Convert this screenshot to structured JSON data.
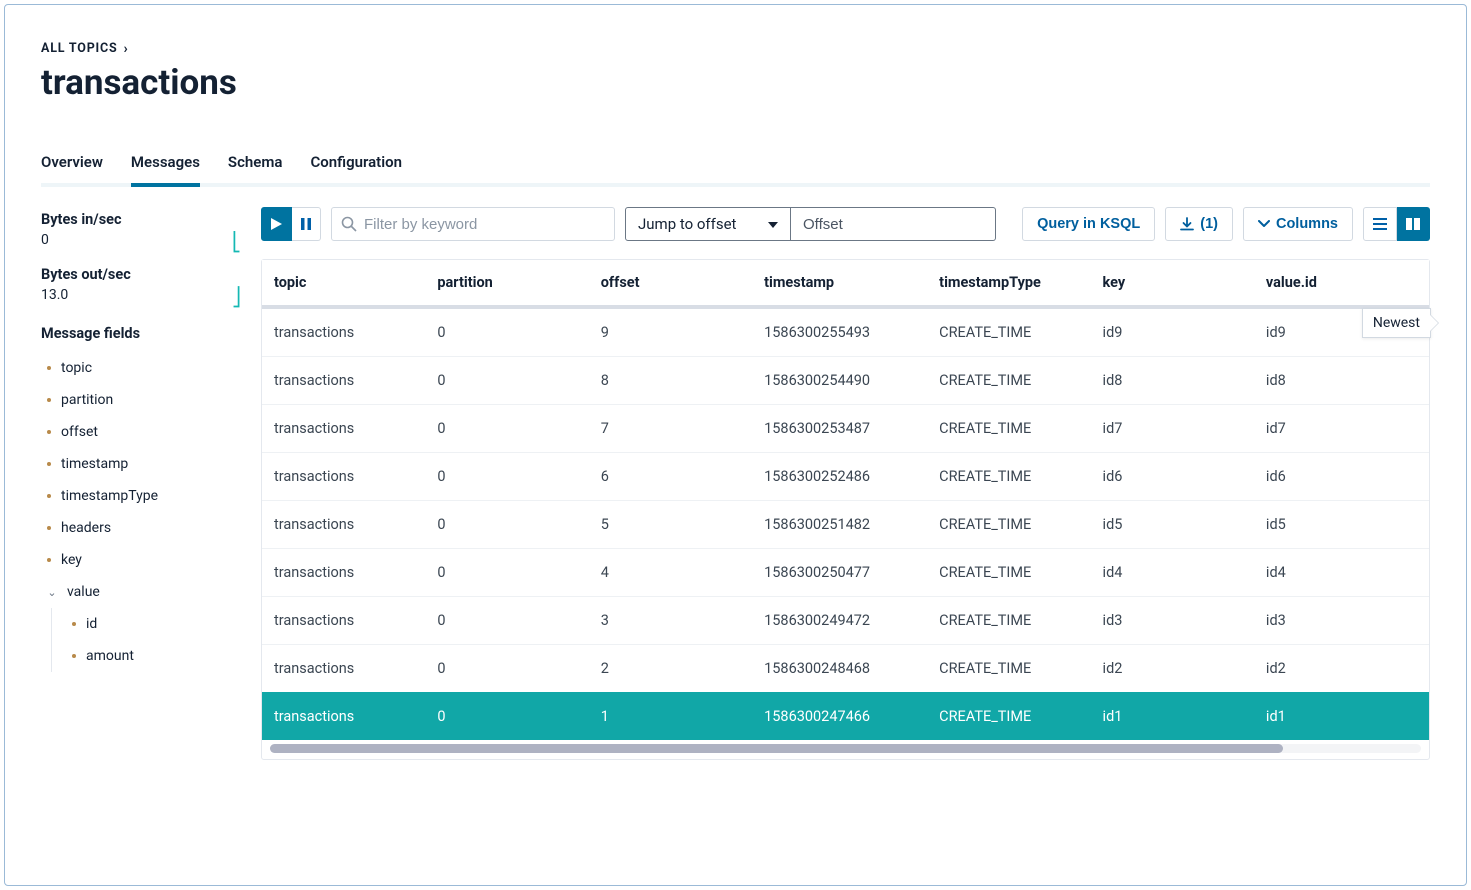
{
  "breadcrumb": {
    "label": "ALL TOPICS"
  },
  "page_title": "transactions",
  "tabs": [
    {
      "label": "Overview",
      "active": false
    },
    {
      "label": "Messages",
      "active": true
    },
    {
      "label": "Schema",
      "active": false
    },
    {
      "label": "Configuration",
      "active": false
    }
  ],
  "sidebar": {
    "metrics": [
      {
        "label": "Bytes in/sec",
        "value": "0"
      },
      {
        "label": "Bytes out/sec",
        "value": "13.0"
      }
    ],
    "fields_title": "Message fields",
    "fields": [
      {
        "label": "topic"
      },
      {
        "label": "partition"
      },
      {
        "label": "offset"
      },
      {
        "label": "timestamp"
      },
      {
        "label": "timestampType"
      },
      {
        "label": "headers"
      },
      {
        "label": "key"
      }
    ],
    "value_group": {
      "label": "value",
      "children": [
        {
          "label": "id"
        },
        {
          "label": "amount"
        }
      ]
    }
  },
  "toolbar": {
    "filter_placeholder": "Filter by keyword",
    "jump_label": "Jump to offset",
    "offset_placeholder": "Offset",
    "query_label": "Query in KSQL",
    "download_count": "(1)",
    "columns_label": "Columns"
  },
  "table": {
    "newest_label": "Newest",
    "columns": [
      {
        "key": "topic",
        "label": "topic",
        "width": "14%"
      },
      {
        "key": "partition",
        "label": "partition",
        "width": "14%"
      },
      {
        "key": "offset",
        "label": "offset",
        "width": "14%"
      },
      {
        "key": "timestamp",
        "label": "timestamp",
        "width": "15%"
      },
      {
        "key": "timestampType",
        "label": "timestampType",
        "width": "14%"
      },
      {
        "key": "key",
        "label": "key",
        "width": "14%"
      },
      {
        "key": "value_id",
        "label": "value.id",
        "width": "15%"
      }
    ],
    "rows": [
      {
        "topic": "transactions",
        "partition": "0",
        "offset": "9",
        "timestamp": "1586300255493",
        "timestampType": "CREATE_TIME",
        "key": "id9",
        "value_id": "id9",
        "selected": false
      },
      {
        "topic": "transactions",
        "partition": "0",
        "offset": "8",
        "timestamp": "1586300254490",
        "timestampType": "CREATE_TIME",
        "key": "id8",
        "value_id": "id8",
        "selected": false
      },
      {
        "topic": "transactions",
        "partition": "0",
        "offset": "7",
        "timestamp": "1586300253487",
        "timestampType": "CREATE_TIME",
        "key": "id7",
        "value_id": "id7",
        "selected": false
      },
      {
        "topic": "transactions",
        "partition": "0",
        "offset": "6",
        "timestamp": "1586300252486",
        "timestampType": "CREATE_TIME",
        "key": "id6",
        "value_id": "id6",
        "selected": false
      },
      {
        "topic": "transactions",
        "partition": "0",
        "offset": "5",
        "timestamp": "1586300251482",
        "timestampType": "CREATE_TIME",
        "key": "id5",
        "value_id": "id5",
        "selected": false
      },
      {
        "topic": "transactions",
        "partition": "0",
        "offset": "4",
        "timestamp": "1586300250477",
        "timestampType": "CREATE_TIME",
        "key": "id4",
        "value_id": "id4",
        "selected": false
      },
      {
        "topic": "transactions",
        "partition": "0",
        "offset": "3",
        "timestamp": "1586300249472",
        "timestampType": "CREATE_TIME",
        "key": "id3",
        "value_id": "id3",
        "selected": false
      },
      {
        "topic": "transactions",
        "partition": "0",
        "offset": "2",
        "timestamp": "1586300248468",
        "timestampType": "CREATE_TIME",
        "key": "id2",
        "value_id": "id2",
        "selected": false
      },
      {
        "topic": "transactions",
        "partition": "0",
        "offset": "1",
        "timestamp": "1586300247466",
        "timestampType": "CREATE_TIME",
        "key": "id1",
        "value_id": "id1",
        "selected": true
      }
    ],
    "scroll_thumb_pct": 88
  },
  "colors": {
    "accent": "#0073a0",
    "teal": "#11a7a7",
    "border": "#d2d9e1",
    "text": "#142133",
    "muted": "#8b96a3"
  }
}
